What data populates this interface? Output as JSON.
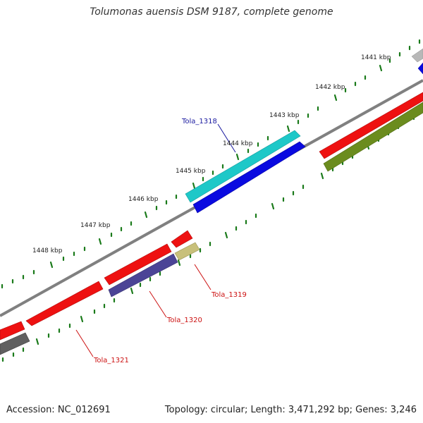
{
  "title": "Tolumonas auensis DSM 9187, complete genome",
  "footer": {
    "accession": "Accession: NC_012691",
    "summary": "Topology: circular; Length: 3,471,292 bp; Genes: 3,246"
  },
  "ruler": {
    "tick_labels": [
      "1441 kbp",
      "1442 kbp",
      "1443 kbp",
      "1444 kbp",
      "1445 kbp",
      "1446 kbp",
      "1447 kbp",
      "1448 kbp"
    ]
  },
  "gene_labels": {
    "tola_1318": "Tola_1318",
    "tola_1319": "Tola_1319",
    "tola_1320": "Tola_1320",
    "tola_1321": "Tola_1321"
  },
  "colors": {
    "ticks": "#1a7a1a",
    "backbone": "#808080",
    "label_blue": "#1a1aa0",
    "label_red": "#cc1111",
    "red": "#ee1111",
    "blue": "#0a0ae0",
    "cyan": "#1ec8c8",
    "navy": "#4b4496",
    "olive": "#6b8c1e",
    "khaki": "#c8c07a",
    "gray": "#606060",
    "silver": "#b8b8b8"
  }
}
